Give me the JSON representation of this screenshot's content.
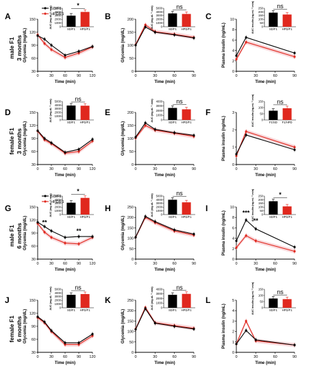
{
  "colors": {
    "sd": "#000000",
    "hfd": "#e0281e",
    "band": "#f4b8bd"
  },
  "rows": [
    {
      "label_lines": [
        "male F1",
        "3 months"
      ]
    },
    {
      "label_lines": [
        "female F1",
        "3 months"
      ]
    },
    {
      "label_lines": [
        "male F1",
        "6 months"
      ]
    },
    {
      "label_lines": [
        "female F1",
        "6 months"
      ]
    }
  ],
  "chart_data": [
    {
      "panel": "A",
      "type": "line",
      "xlabel": "Time (min)",
      "ylabel": "Glycemia (mg/dL)",
      "x": [
        0,
        15,
        30,
        60,
        90,
        120
      ],
      "xlim": [
        0,
        120
      ],
      "ylim": [
        30,
        150
      ],
      "xticks": [
        0,
        30,
        60,
        90,
        120
      ],
      "yticks": [
        30,
        60,
        90,
        120,
        150
      ],
      "series": [
        {
          "name": "SD/F1",
          "values": [
            112,
            104,
            90,
            67,
            76,
            87
          ]
        },
        {
          "name": "HPD/F1",
          "values": [
            114,
            94,
            80,
            62,
            72,
            86
          ]
        }
      ],
      "legend": {
        "labels": [
          "SD/F1",
          "HPD/F1"
        ]
      },
      "inset": {
        "type": "bar",
        "categories": [
          "SD/F1",
          "HPD/F1"
        ],
        "values": [
          3000,
          4000
        ],
        "ylim": [
          0,
          5000
        ],
        "yticks": [
          0,
          1000,
          2000,
          3000,
          4000,
          5000
        ],
        "ylabel": "AUC (mg.dL⁻¹.min)",
        "sig": "*"
      }
    },
    {
      "panel": "B",
      "type": "line",
      "xlabel": "Time (min)",
      "ylabel": "Glycemia (mg/dL)",
      "x": [
        0,
        15,
        30,
        60,
        90
      ],
      "xlim": [
        0,
        90
      ],
      "ylim": [
        0,
        200
      ],
      "xticks": [
        0,
        30,
        60,
        90
      ],
      "yticks": [
        0,
        50,
        100,
        150,
        200
      ],
      "series": [
        {
          "name": "SD/F1",
          "values": [
            100,
            170,
            150,
            140,
            128
          ]
        },
        {
          "name": "HPD/F1",
          "values": [
            102,
            178,
            152,
            142,
            130
          ]
        }
      ],
      "inset": {
        "type": "bar",
        "categories": [
          "SD/F1",
          "HPD/F1"
        ],
        "values": [
          3600,
          3450
        ],
        "ylim": [
          0,
          5000
        ],
        "yticks": [
          0,
          1000,
          2000,
          3000,
          4000,
          5000
        ],
        "ylabel": "AUC (mg.dL⁻¹.min)",
        "sig": "ns"
      }
    },
    {
      "panel": "C",
      "type": "line",
      "xlabel": "Time (min)",
      "ylabel": "Plasma insulin (ng/mL)",
      "x": [
        0,
        15,
        90
      ],
      "xlim": [
        0,
        90
      ],
      "ylim": [
        0,
        10
      ],
      "xticks": [
        0,
        30,
        60,
        90
      ],
      "yticks": [
        0,
        2,
        4,
        6,
        8,
        10
      ],
      "series": [
        {
          "name": "SD/F1",
          "values": [
            3,
            6.5,
            3.5
          ]
        },
        {
          "name": "HPD/F1",
          "values": [
            2.3,
            5.6,
            2.8
          ]
        }
      ],
      "inset": {
        "type": "bar",
        "categories": [
          "SD/F1",
          "HPD/F1"
        ],
        "values": [
          190,
          165
        ],
        "ylim": [
          0,
          250
        ],
        "yticks": [
          0,
          50,
          100,
          150,
          200,
          250
        ],
        "ylabel": "AUC insulin (ng.mL⁻¹.min)",
        "sig": "ns"
      }
    },
    {
      "panel": "D",
      "type": "line",
      "xlabel": "Time (min)",
      "ylabel": "Glycemia (mg/dL)",
      "x": [
        0,
        15,
        30,
        60,
        90,
        120
      ],
      "xlim": [
        0,
        120
      ],
      "ylim": [
        30,
        150
      ],
      "xticks": [
        0,
        30,
        60,
        90,
        120
      ],
      "yticks": [
        30,
        60,
        90,
        120,
        150
      ],
      "series": [
        {
          "name": "SD/F1",
          "values": [
            108,
            90,
            80,
            58,
            65,
            88
          ]
        },
        {
          "name": "HPD/F1",
          "values": [
            107,
            87,
            78,
            56,
            60,
            84
          ]
        }
      ],
      "inset": {
        "type": "bar",
        "categories": [
          "SD/F1",
          "HPD/F1"
        ],
        "values": [
          3900,
          3850
        ],
        "ylim": [
          0,
          5000
        ],
        "yticks": [
          0,
          1000,
          2000,
          3000,
          4000,
          5000
        ],
        "ylabel": "AUC (mg.dL⁻¹.min)",
        "sig": "ns"
      }
    },
    {
      "panel": "E",
      "type": "line",
      "xlabel": "Time (min)",
      "ylabel": "Glycemia (mg/dL)",
      "x": [
        0,
        15,
        30,
        60,
        90
      ],
      "xlim": [
        0,
        90
      ],
      "ylim": [
        0,
        200
      ],
      "xticks": [
        0,
        30,
        60,
        90
      ],
      "yticks": [
        0,
        50,
        100,
        150,
        200
      ],
      "series": [
        {
          "name": "SD/F1",
          "values": [
            105,
            160,
            135,
            122,
            112
          ]
        },
        {
          "name": "HPD/F1",
          "values": [
            102,
            150,
            132,
            120,
            108
          ]
        }
      ],
      "inset": {
        "type": "bar",
        "categories": [
          "SD/F1",
          "HPD/F1"
        ],
        "values": [
          2600,
          2300
        ],
        "ylim": [
          0,
          4000
        ],
        "yticks": [
          0,
          1000,
          2000,
          3000,
          4000
        ],
        "ylabel": "AUC (mg.dL⁻¹.min)",
        "sig": "ns"
      }
    },
    {
      "panel": "F",
      "type": "line",
      "xlabel": "Time (min)",
      "ylabel": "Plasma insulin (ng/mL)",
      "x": [
        0,
        15,
        90
      ],
      "xlim": [
        0,
        90
      ],
      "ylim": [
        0,
        3
      ],
      "xticks": [
        0,
        30,
        60,
        90
      ],
      "yticks": [
        0,
        1,
        2,
        3
      ],
      "series": [
        {
          "name": "SD/F1",
          "values": [
            0.6,
            1.7,
            0.85
          ]
        },
        {
          "name": "HPD/F1",
          "values": [
            0.5,
            1.9,
            1.0
          ]
        }
      ],
      "inset": {
        "type": "bar",
        "categories": [
          "F1/SD",
          "F1/HPD"
        ],
        "values": [
          75,
          95
        ],
        "ylim": [
          0,
          150
        ],
        "yticks": [
          0,
          50,
          100,
          150
        ],
        "ylabel": "AUC insulin (ng.mL⁻¹.min)",
        "sig": "ns"
      }
    },
    {
      "panel": "G",
      "type": "line",
      "xlabel": "Time (min)",
      "ylabel": "Glycemia (mg/dL)",
      "x": [
        0,
        15,
        30,
        60,
        90,
        120
      ],
      "xlim": [
        0,
        120
      ],
      "ylim": [
        30,
        150
      ],
      "xticks": [
        0,
        30,
        60,
        90,
        120
      ],
      "yticks": [
        30,
        60,
        90,
        120,
        150
      ],
      "series": [
        {
          "name": "SD/F1",
          "values": [
            115,
            105,
            95,
            80,
            82,
            82
          ]
        },
        {
          "name": "HPD/F1",
          "values": [
            112,
            92,
            80,
            67,
            65,
            80
          ]
        }
      ],
      "annotations": [
        {
          "x": 15,
          "y": 110,
          "text": "**"
        },
        {
          "x": 90,
          "y": 90,
          "text": "**"
        }
      ],
      "legend": {
        "labels": [
          "SD/F1",
          "HPD/F1"
        ]
      },
      "inset": {
        "type": "bar",
        "categories": [
          "SD/F1",
          "HPD/F1"
        ],
        "values": [
          3200,
          4500
        ],
        "ylim": [
          0,
          5000
        ],
        "yticks": [
          0,
          1000,
          2000,
          3000,
          4000,
          5000
        ],
        "ylabel": "AUC (mg.dL⁻¹.min)",
        "sig": "*"
      }
    },
    {
      "panel": "H",
      "type": "line",
      "xlabel": "Time (min)",
      "ylabel": "Glycemia (mg/dL)",
      "x": [
        0,
        15,
        30,
        60,
        90
      ],
      "xlim": [
        0,
        90
      ],
      "ylim": [
        0,
        250
      ],
      "xticks": [
        0,
        30,
        60,
        90
      ],
      "yticks": [
        0,
        50,
        100,
        150,
        200,
        250
      ],
      "series": [
        {
          "name": "SD/F1",
          "values": [
            105,
            205,
            180,
            140,
            120
          ]
        },
        {
          "name": "HPD/F1",
          "values": [
            105,
            200,
            175,
            135,
            115
          ]
        }
      ],
      "inset": {
        "type": "bar",
        "categories": [
          "SD/F1",
          "HPD/F1"
        ],
        "values": [
          4000,
          3300
        ],
        "ylim": [
          0,
          5000
        ],
        "yticks": [
          0,
          1000,
          2000,
          3000,
          4000,
          5000
        ],
        "ylabel": "AUC (mg.dL⁻¹.min)",
        "sig": "ns"
      }
    },
    {
      "panel": "I",
      "type": "line",
      "xlabel": "Time (min)",
      "ylabel": "Plasma insulin (ng/mL)",
      "x": [
        0,
        15,
        30,
        90
      ],
      "xlim": [
        0,
        90
      ],
      "ylim": [
        0,
        10
      ],
      "xticks": [
        0,
        30,
        60,
        90
      ],
      "yticks": [
        0,
        2,
        4,
        6,
        8,
        10
      ],
      "series": [
        {
          "name": "SD/F1",
          "values": [
            3.5,
            7.5,
            5.8,
            2.3
          ]
        },
        {
          "name": "HPD/F1",
          "values": [
            2.2,
            4.5,
            3.5,
            1.5
          ]
        }
      ],
      "annotations": [
        {
          "x": 15,
          "y": 8.5,
          "text": "***"
        },
        {
          "x": 30,
          "y": 7,
          "text": "**"
        }
      ],
      "inset": {
        "type": "bar",
        "categories": [
          "SD/F1",
          "HPD/F1"
        ],
        "values": [
          180,
          110
        ],
        "ylim": [
          0,
          250
        ],
        "yticks": [
          0,
          50,
          100,
          150,
          200,
          250
        ],
        "ylabel": "AUC insulin (ng.mL⁻¹.min)",
        "sig": "*"
      }
    },
    {
      "panel": "J",
      "type": "line",
      "xlabel": "Time (min)",
      "ylabel": "Glycemia (mg/dL)",
      "x": [
        0,
        15,
        30,
        60,
        90,
        120
      ],
      "xlim": [
        0,
        120
      ],
      "ylim": [
        30,
        150
      ],
      "xticks": [
        0,
        30,
        60,
        90,
        120
      ],
      "yticks": [
        30,
        60,
        90,
        120,
        150
      ],
      "series": [
        {
          "name": "SD/F1",
          "values": [
            112,
            100,
            80,
            52,
            52,
            72
          ]
        },
        {
          "name": "HPD/F1",
          "values": [
            110,
            98,
            78,
            48,
            48,
            68
          ]
        }
      ],
      "inset": {
        "type": "bar",
        "categories": [
          "SD/F1",
          "HPD/F1"
        ],
        "values": [
          3500,
          3700
        ],
        "ylim": [
          0,
          5000
        ],
        "yticks": [
          0,
          1000,
          2000,
          3000,
          4000,
          5000
        ],
        "ylabel": "AUC (mg.dL⁻¹.min)",
        "sig": "ns"
      }
    },
    {
      "panel": "K",
      "type": "line",
      "xlabel": "Time (min)",
      "ylabel": "Glycemia (mg/dL)",
      "x": [
        0,
        15,
        30,
        60,
        90
      ],
      "xlim": [
        0,
        90
      ],
      "ylim": [
        0,
        250
      ],
      "xticks": [
        0,
        30,
        60,
        90
      ],
      "yticks": [
        0,
        50,
        100,
        150,
        200,
        250
      ],
      "series": [
        {
          "name": "SD/F1",
          "values": [
            110,
            210,
            140,
            125,
            112
          ]
        },
        {
          "name": "HPD/F1",
          "values": [
            112,
            215,
            142,
            128,
            115
          ]
        }
      ],
      "inset": {
        "type": "bar",
        "categories": [
          "SD/F1",
          "HPD/F1"
        ],
        "values": [
          2800,
          3000
        ],
        "ylim": [
          0,
          4000
        ],
        "yticks": [
          0,
          1000,
          2000,
          3000,
          4000
        ],
        "ylabel": "AUC (mg.dL⁻¹.min)",
        "sig": "ns"
      }
    },
    {
      "panel": "L",
      "type": "line",
      "xlabel": "Time (min)",
      "ylabel": "Plasma insulin (ng/mL)",
      "x": [
        0,
        15,
        30,
        90
      ],
      "xlim": [
        0,
        90
      ],
      "ylim": [
        0,
        5
      ],
      "xticks": [
        0,
        30,
        60,
        90
      ],
      "yticks": [
        0,
        1,
        2,
        3,
        4,
        5
      ],
      "series": [
        {
          "name": "SD/F1",
          "values": [
            0.8,
            2.1,
            1.2,
            0.7
          ]
        },
        {
          "name": "HPD/F1",
          "values": [
            0.8,
            3.0,
            1.1,
            0.7
          ]
        }
      ],
      "inset": {
        "type": "bar",
        "categories": [
          "SD/F1",
          "HPD/F1"
        ],
        "values": [
          75,
          70
        ],
        "ylim": [
          0,
          150
        ],
        "yticks": [
          0,
          50,
          100,
          150
        ],
        "ylabel": "AUC insulin (ng.mL⁻¹.min)",
        "sig": "ns"
      }
    }
  ]
}
